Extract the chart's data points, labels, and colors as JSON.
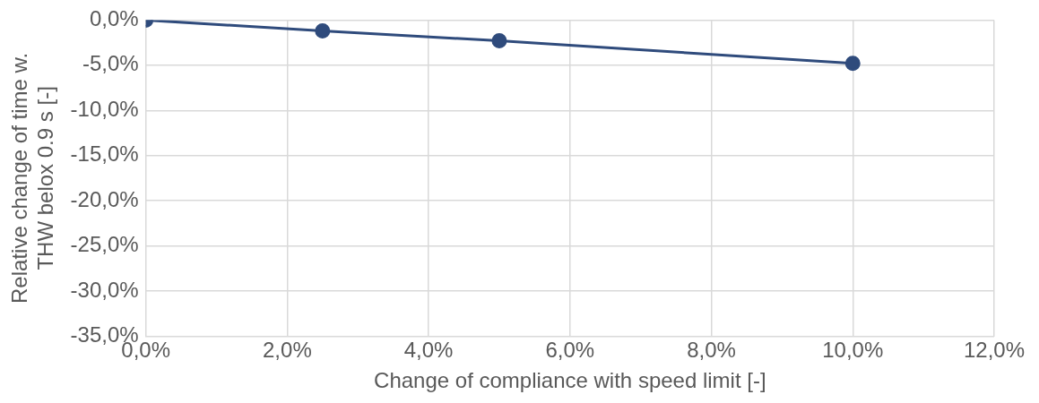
{
  "chart_data": {
    "type": "line",
    "xlabel": "Change of compliance with speed limit [-]",
    "ylabel": "Relative change of time w.\nTHW belox 0.9 s [-]",
    "x": [
      0,
      2.5,
      5,
      10
    ],
    "series": [
      {
        "color": "#2f4b7c",
        "values": [
          0,
          -1.2,
          -2.3,
          -4.8
        ]
      }
    ],
    "xlim": [
      0,
      12
    ],
    "xticks": [
      {
        "value": 0,
        "label": "0,0%"
      },
      {
        "value": 2,
        "label": "2,0%"
      },
      {
        "value": 4,
        "label": "4,0%"
      },
      {
        "value": 6,
        "label": "6,0%"
      },
      {
        "value": 8,
        "label": "8,0%"
      },
      {
        "value": 10,
        "label": "10,0%"
      },
      {
        "value": 12,
        "label": "12,0%"
      }
    ],
    "ylim": [
      -35,
      0
    ],
    "yticks": [
      {
        "value": 0,
        "label": "0,0%"
      },
      {
        "value": -5,
        "label": "-5,0%"
      },
      {
        "value": -10,
        "label": "-10,0%"
      },
      {
        "value": -15,
        "label": "-15,0%"
      },
      {
        "value": -20,
        "label": "-20,0%"
      },
      {
        "value": -25,
        "label": "-25,0%"
      },
      {
        "value": -30,
        "label": "-30,0%"
      },
      {
        "value": -35,
        "label": "-35,0%"
      }
    ],
    "grid": true,
    "legend": false,
    "marker": "circle",
    "line_style": "solid"
  }
}
